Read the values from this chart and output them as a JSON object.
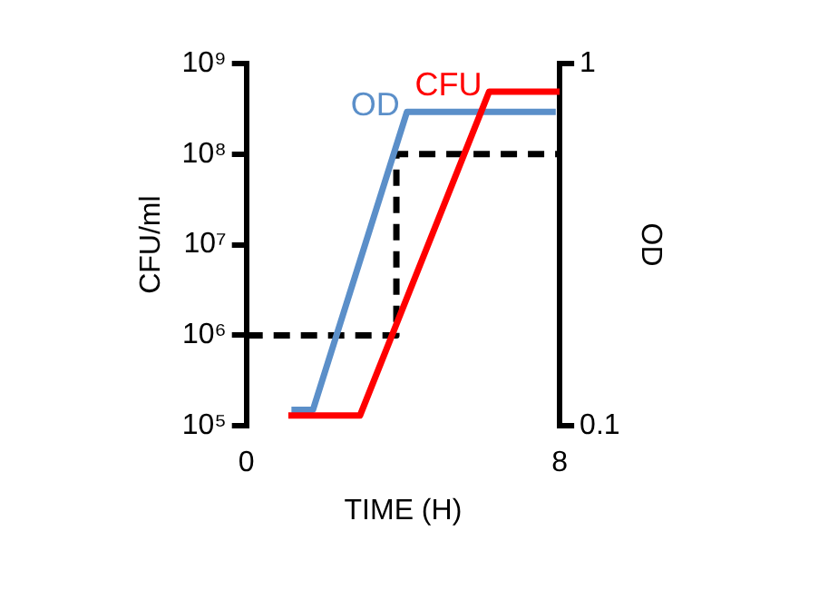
{
  "chart_data": {
    "type": "line",
    "xlabel": "TIME (H)",
    "ylabel": "CFU/ml",
    "y2label": "OD",
    "log": "y",
    "grid": false,
    "legend": false,
    "marker": "none",
    "xlim": [
      0,
      8
    ],
    "xticks": [
      0,
      8
    ],
    "ylim": [
      100000,
      1000000000
    ],
    "yticks": [
      {
        "value": 100000,
        "label": "10⁵"
      },
      {
        "value": 1000000,
        "label": "10⁶"
      },
      {
        "value": 10000000,
        "label": "10⁷"
      },
      {
        "value": 100000000,
        "label": "10⁸"
      },
      {
        "value": 1000000000,
        "label": "10⁹"
      }
    ],
    "y2lim": [
      0.1,
      1
    ],
    "y2ticks": [
      0.1,
      1
    ],
    "series": [
      {
        "name": "CFU",
        "color": "#ff0000",
        "x": [
          1.07,
          2.9,
          6.2,
          8
        ],
        "values": [
          130000,
          130000,
          490000000,
          490000000
        ]
      },
      {
        "name": "OD",
        "color": "#5b8fc9",
        "axis": "y2",
        "x": [
          1.15,
          1.7,
          4.1,
          7.9
        ],
        "values": [
          0.14,
          0.14,
          0.88,
          0.88
        ]
      },
      {
        "color": "#000000",
        "line_style": "dashed",
        "x": [
          0,
          3.83,
          3.83,
          8
        ],
        "values": [
          1000000,
          1000000,
          100000000,
          100000000
        ]
      }
    ]
  }
}
